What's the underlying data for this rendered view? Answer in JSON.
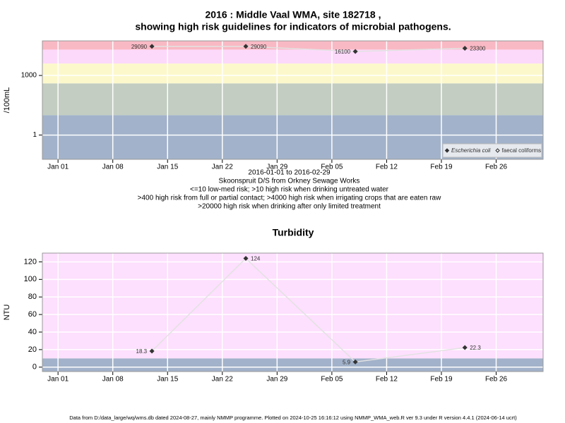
{
  "chart_data": [
    {
      "type": "line",
      "title": "2016 : Middle Vaal WMA, site 182718 ,",
      "subtitle": "showing high risk guidelines for indicators of microbial pathogens.",
      "ylabel": "/100mL",
      "notes": [
        "2016-01-01 to 2016-02-29",
        "Skoonspruit D/S from Orkney Sewage Works",
        "<=10 low-med risk; >10 high risk when drinking untreated water",
        ">400 high risk from full or partial contact; >4000 high risk when irrigating crops that are eaten raw",
        ">20000 high risk when drinking after only limited treatment"
      ],
      "x": [
        "2016-01-13",
        "2016-01-25",
        "2016-02-08",
        "2016-02-22"
      ],
      "series": [
        {
          "name": "Escherichia coli",
          "color": "#333333",
          "values": [
            29090,
            29090,
            16100,
            23300
          ]
        },
        {
          "name": "faecal coliforms",
          "color": "#333333",
          "values": [
            null,
            null,
            null,
            null
          ]
        }
      ],
      "xlim": [
        "2015-12-30",
        "2016-03-03"
      ],
      "xticks": [
        {
          "value": "2016-01-01",
          "label": "Jan 01"
        },
        {
          "value": "2016-01-08",
          "label": "Jan 08"
        },
        {
          "value": "2016-01-15",
          "label": "Jan 15"
        },
        {
          "value": "2016-01-22",
          "label": "Jan 22"
        },
        {
          "value": "2016-01-29",
          "label": "Jan 29"
        },
        {
          "value": "2016-02-05",
          "label": "Feb 05"
        },
        {
          "value": "2016-02-12",
          "label": "Feb 12"
        },
        {
          "value": "2016-02-19",
          "label": "Feb 19"
        },
        {
          "value": "2016-02-26",
          "label": "Feb 26"
        }
      ],
      "ylim": [
        0.06,
        55000
      ],
      "yticks": [
        1,
        1000
      ],
      "log_scale": true,
      "grid": true,
      "legend": "bottom-right",
      "thresholds": [
        10,
        400,
        4000,
        20000
      ],
      "band_colors": [
        "#a2b2ca",
        "#c3cdc1",
        "#fcf8cc",
        "#fcd9fb",
        "#f9b9c4"
      ]
    },
    {
      "type": "line",
      "title": "Turbidity",
      "ylabel": "NTU",
      "x": [
        "2016-01-13",
        "2016-01-25",
        "2016-02-08",
        "2016-02-22"
      ],
      "series": [
        {
          "name": "Turbidity",
          "color": "#333333",
          "values": [
            18.3,
            124,
            5.9,
            22.3
          ]
        }
      ],
      "xlim": [
        "2015-12-30",
        "2016-03-03"
      ],
      "xticks": [
        {
          "value": "2016-01-01",
          "label": "Jan 01"
        },
        {
          "value": "2016-01-08",
          "label": "Jan 08"
        },
        {
          "value": "2016-01-15",
          "label": "Jan 15"
        },
        {
          "value": "2016-01-22",
          "label": "Jan 22"
        },
        {
          "value": "2016-01-29",
          "label": "Jan 29"
        },
        {
          "value": "2016-02-05",
          "label": "Feb 05"
        },
        {
          "value": "2016-02-12",
          "label": "Feb 12"
        },
        {
          "value": "2016-02-19",
          "label": "Feb 19"
        },
        {
          "value": "2016-02-26",
          "label": "Feb 26"
        }
      ],
      "ylim": [
        -5,
        130
      ],
      "yticks": [
        0,
        20,
        40,
        60,
        80,
        100,
        120
      ],
      "log_scale": false,
      "grid": true,
      "thresholds": [
        10
      ],
      "band_colors": [
        "#a2b2ca",
        "#fde0fd"
      ]
    }
  ],
  "footer": "Data from D:/data_large/wq/wms.db dated 2024-08-27, mainly NMMP programme. Plotted on 2024-10-25 16:16:12 using NMMP_WMA_web.R ver 9.3 under R version 4.4.1 (2024-06-14 ucrt)"
}
